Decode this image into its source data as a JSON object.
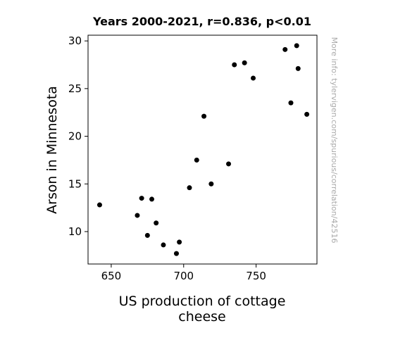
{
  "chart_data": {
    "type": "scatter",
    "title": "Years 2000-2021, r=0.836, p<0.01",
    "xlabel_lines": [
      "US production of cottage",
      "cheese"
    ],
    "ylabel": "Arson in Minnesota",
    "watermark": "More info: tylervigen.com/spurious/correlation/42516",
    "xlim": [
      634,
      792
    ],
    "ylim": [
      6.6,
      30.6
    ],
    "xticks": [
      650,
      700,
      750
    ],
    "yticks": [
      10,
      15,
      20,
      25,
      30
    ],
    "grid": false,
    "point_color": "#000000",
    "points": [
      {
        "x": 642,
        "y": 12.8
      },
      {
        "x": 668,
        "y": 11.7
      },
      {
        "x": 671,
        "y": 13.5
      },
      {
        "x": 675,
        "y": 9.6
      },
      {
        "x": 678,
        "y": 13.4
      },
      {
        "x": 681,
        "y": 10.9
      },
      {
        "x": 686,
        "y": 8.6
      },
      {
        "x": 695,
        "y": 7.7
      },
      {
        "x": 697,
        "y": 8.9
      },
      {
        "x": 704,
        "y": 14.6
      },
      {
        "x": 709,
        "y": 17.5
      },
      {
        "x": 714,
        "y": 22.1
      },
      {
        "x": 719,
        "y": 15.0
      },
      {
        "x": 731,
        "y": 17.1
      },
      {
        "x": 735,
        "y": 27.5
      },
      {
        "x": 742,
        "y": 27.7
      },
      {
        "x": 748,
        "y": 26.1
      },
      {
        "x": 770,
        "y": 29.1
      },
      {
        "x": 774,
        "y": 23.5
      },
      {
        "x": 778,
        "y": 29.5
      },
      {
        "x": 779,
        "y": 27.1
      },
      {
        "x": 785,
        "y": 22.3
      }
    ]
  }
}
